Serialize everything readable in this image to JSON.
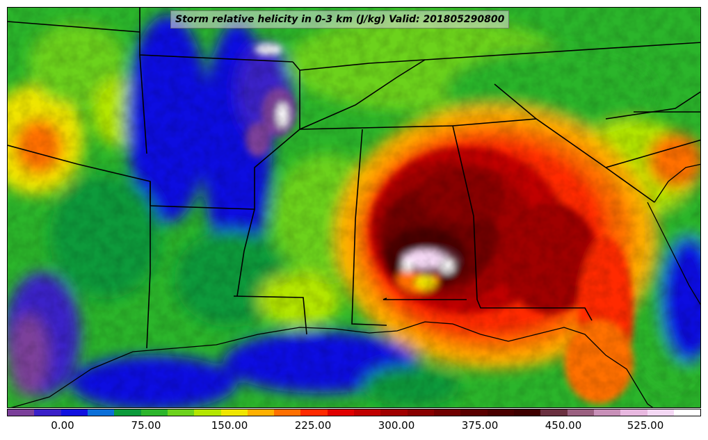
{
  "title": "Storm relative helicity in 0-3 km (J/kg) Valid: 201805290800",
  "colorbar": {
    "colors": [
      "#7b3f9a",
      "#3a20c8",
      "#1010e0",
      "#0a6fd8",
      "#0a9a3a",
      "#2bb52b",
      "#6cd21c",
      "#b4e600",
      "#f0e600",
      "#ffb000",
      "#ff7000",
      "#ff2a00",
      "#e00000",
      "#c00000",
      "#a00000",
      "#880000",
      "#700000",
      "#5a0000",
      "#4a0000",
      "#3e0000",
      "#6a3040",
      "#9a6080",
      "#c890b8",
      "#e8b8e0",
      "#f4d8f4",
      "#ffffff"
    ],
    "tick_labels": [
      "0.00",
      "75.00",
      "150.00",
      "225.00",
      "300.00",
      "375.00",
      "450.00",
      "525.00"
    ]
  }
}
